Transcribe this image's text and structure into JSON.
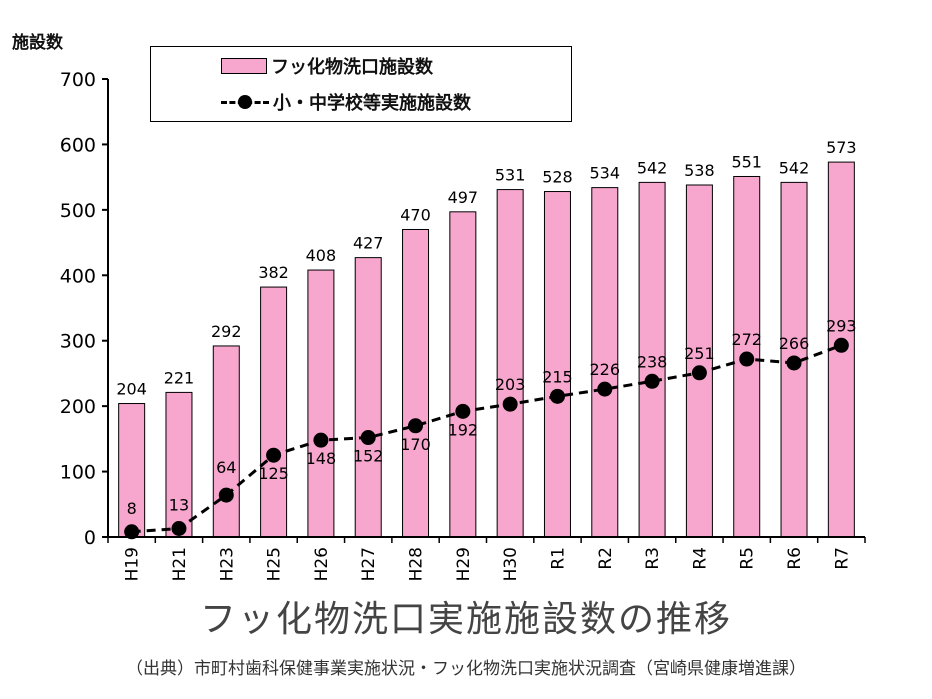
{
  "chart_data": {
    "type": "bar",
    "title": "フッ化物洗口実施施設数の推移",
    "source": "（出典）市町村歯科保健事業実施状況・フッ化物洗口実施状況調査（宮崎県健康増進課）",
    "ylabel": "施設数",
    "ylim": [
      0,
      700
    ],
    "yticks": [
      0,
      100,
      200,
      300,
      400,
      500,
      600,
      700
    ],
    "categories": [
      "H19",
      "H21",
      "H23",
      "H25",
      "H26",
      "H27",
      "H28",
      "H29",
      "H30",
      "R1",
      "R2",
      "R3",
      "R4",
      "R5",
      "R6",
      "R7"
    ],
    "series": [
      {
        "name": "フッ化物洗口施設数",
        "type": "bar",
        "color": "#f7a6cd",
        "values": [
          204,
          221,
          292,
          382,
          408,
          427,
          470,
          497,
          531,
          528,
          534,
          542,
          538,
          551,
          542,
          573
        ]
      },
      {
        "name": "小・中学校等実施施設数",
        "type": "line",
        "style": "dashed",
        "color": "#000000",
        "values": [
          8,
          13,
          64,
          125,
          148,
          152,
          170,
          192,
          203,
          215,
          226,
          238,
          251,
          272,
          266,
          293
        ]
      }
    ],
    "grid": false,
    "legend_position": "top-left"
  }
}
